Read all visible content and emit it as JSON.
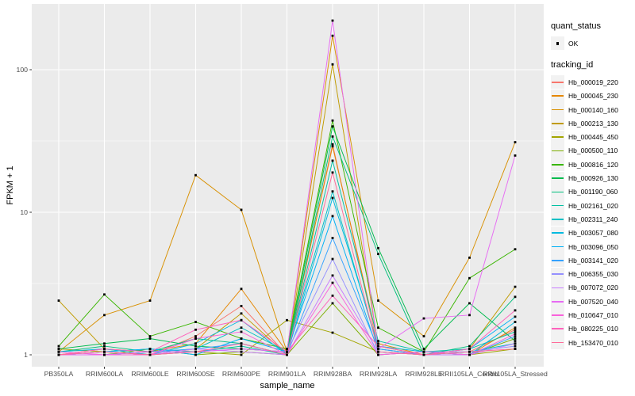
{
  "legend": {
    "quant_status": {
      "title": "quant_status",
      "label": "OK",
      "marker": "black-point"
    },
    "tracking": {
      "title": "tracking_id"
    }
  },
  "chart_data": {
    "type": "line",
    "title": "",
    "xlabel": "sample_name",
    "ylabel": "FPKM + 1",
    "y_scale": "log10",
    "ylim": [
      1,
      250
    ],
    "y_ticks": [
      "1",
      "10",
      "100"
    ],
    "y_minor_gridlines": [
      3.1623,
      31.623
    ],
    "grid": "on",
    "legend_position": "right",
    "panel_background": "#EBEBEB",
    "gridline_color": "#FFFFFF",
    "tick_label_color": "#4D4D4D",
    "point_marker": "small-black-square",
    "categories": [
      "PB350LA",
      "RRIM600LA",
      "RRIM600LE",
      "RRIM600SE",
      "RRIM600PE",
      "RRIM901LA",
      "RRIM928BA",
      "RRIM928LA",
      "RRIM928LE",
      "RRII105LA_Control",
      "RRII105LA_Stressed"
    ],
    "series": [
      {
        "name": "Hb_000019_220",
        "color": "#F8766D",
        "values": [
          1.0,
          1.05,
          1.0,
          1.35,
          2.2,
          1.0,
          30,
          1.1,
          1.0,
          1.05,
          1.5
        ]
      },
      {
        "name": "Hb_000045_230",
        "color": "#E58700",
        "values": [
          1.0,
          1.1,
          1.05,
          1.2,
          2.9,
          1.05,
          29,
          1.2,
          1.0,
          1.0,
          1.55
        ]
      },
      {
        "name": "Hb_000140_160",
        "color": "#D89000",
        "values": [
          1.05,
          1.9,
          2.4,
          18.2,
          10.4,
          1.05,
          173,
          2.4,
          1.35,
          4.8,
          31
        ]
      },
      {
        "name": "Hb_000213_130",
        "color": "#C09B00",
        "values": [
          2.4,
          1.1,
          1.0,
          1.1,
          1.95,
          1.0,
          109,
          1.15,
          1.0,
          1.1,
          3.0
        ]
      },
      {
        "name": "Hb_000445_450",
        "color": "#A3A500",
        "values": [
          1.1,
          1.05,
          1.0,
          1.05,
          1.0,
          1.75,
          1.43,
          1.05,
          1.0,
          1.0,
          1.1
        ]
      },
      {
        "name": "Hb_000500_110",
        "color": "#7CAE00",
        "values": [
          1.0,
          1.0,
          1.1,
          1.0,
          1.05,
          1.0,
          2.3,
          1.0,
          1.05,
          1.0,
          1.3
        ]
      },
      {
        "name": "Hb_000816_120",
        "color": "#39B600",
        "values": [
          1.15,
          2.65,
          1.35,
          1.7,
          1.3,
          1.1,
          44,
          1.55,
          1.05,
          3.45,
          5.5
        ]
      },
      {
        "name": "Hb_000926_130",
        "color": "#00BB4E",
        "values": [
          1.1,
          1.2,
          1.3,
          1.15,
          1.1,
          1.05,
          40,
          5.6,
          1.1,
          2.3,
          1.25
        ]
      },
      {
        "name": "Hb_001190_060",
        "color": "#00BF7D",
        "values": [
          1.05,
          1.15,
          1.05,
          1.3,
          1.2,
          1.0,
          34,
          5.1,
          1.0,
          1.15,
          2.55
        ]
      },
      {
        "name": "Hb_002161_020",
        "color": "#00C1A3",
        "values": [
          1.0,
          1.05,
          1.1,
          1.05,
          1.15,
          1.0,
          23,
          1.25,
          1.05,
          1.1,
          1.45
        ]
      },
      {
        "name": "Hb_002311_240",
        "color": "#00BFC4",
        "values": [
          1.0,
          1.0,
          1.05,
          1.1,
          1.55,
          1.05,
          14,
          1.1,
          1.0,
          1.05,
          1.2
        ]
      },
      {
        "name": "Hb_003057_080",
        "color": "#00BAE0",
        "values": [
          1.05,
          1.1,
          1.0,
          1.2,
          1.75,
          1.0,
          12.6,
          1.15,
          1.05,
          1.0,
          1.7
        ]
      },
      {
        "name": "Hb_003096_050",
        "color": "#00B0F6",
        "values": [
          1.0,
          1.05,
          1.1,
          1.0,
          1.3,
          1.05,
          9.4,
          1.05,
          1.0,
          1.1,
          1.85
        ]
      },
      {
        "name": "Hb_003141_020",
        "color": "#35A2FF",
        "values": [
          1.0,
          1.0,
          1.05,
          1.1,
          1.2,
          1.0,
          6.6,
          1.1,
          1.0,
          1.0,
          1.35
        ]
      },
      {
        "name": "Hb_006355_030",
        "color": "#9590FF",
        "values": [
          1.05,
          1.0,
          1.0,
          1.05,
          1.1,
          1.05,
          4.7,
          1.0,
          1.05,
          1.05,
          1.15
        ]
      },
      {
        "name": "Hb_007072_020",
        "color": "#C77CFF",
        "values": [
          1.0,
          1.05,
          1.0,
          1.1,
          1.05,
          1.0,
          3.6,
          1.05,
          1.0,
          1.0,
          1.2
        ]
      },
      {
        "name": "Hb_007520_040",
        "color": "#E76BF3",
        "values": [
          1.0,
          1.0,
          1.05,
          1.05,
          1.1,
          1.05,
          221,
          1.1,
          1.8,
          1.9,
          25
        ]
      },
      {
        "name": "Hb_010647_010",
        "color": "#FA62DB",
        "values": [
          1.05,
          1.0,
          1.0,
          1.3,
          1.45,
          1.0,
          3.2,
          1.0,
          1.05,
          1.0,
          1.4
        ]
      },
      {
        "name": "Hb_080225_010",
        "color": "#FF62BC",
        "values": [
          1.0,
          1.1,
          1.05,
          1.5,
          1.75,
          1.05,
          2.6,
          1.15,
          1.0,
          1.1,
          2.05
        ]
      },
      {
        "name": "Hb_153470_010",
        "color": "#FF6A98",
        "values": [
          1.0,
          1.05,
          1.0,
          1.05,
          1.2,
          1.0,
          19,
          1.05,
          1.0,
          1.05,
          1.1
        ]
      }
    ]
  }
}
